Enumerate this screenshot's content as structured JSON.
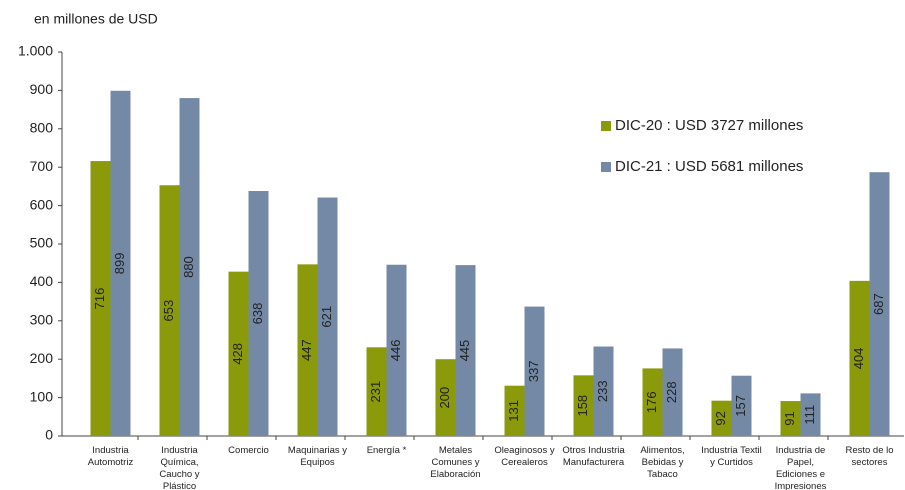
{
  "chart_data": {
    "type": "bar",
    "y_axis_label": "en millones de USD",
    "categories": [
      "Industria\nAutomotriz",
      "Industria\nQuímica,\nCaucho y\nPlástico",
      "Comercio",
      "Maquinarias y\nEquipos",
      "Energía *",
      "Metales\nComunes y\nElaboración",
      "Oleaginosos y\nCerealeros",
      "Otros Industria\nManufacturera",
      "Alimentos,\nBebidas y\nTabaco",
      "Industria Textil\ny Curtidos",
      "Industria de\nPapel,\nEdiciones e\nImpresiones",
      "Resto de lo\nsectores"
    ],
    "series": [
      {
        "name": "DIC-20 : USD 3727 millones",
        "color": "#8a9a0b",
        "values": [
          716,
          653,
          428,
          447,
          231,
          200,
          131,
          158,
          176,
          92,
          91,
          404
        ]
      },
      {
        "name": "DIC-21 : USD 5681 millones",
        "color": "#7489a6",
        "values": [
          899,
          880,
          638,
          621,
          446,
          445,
          337,
          233,
          228,
          157,
          111,
          687
        ]
      }
    ],
    "ylim": [
      0,
      1000
    ],
    "yticks": [
      0,
      100,
      200,
      300,
      400,
      500,
      600,
      700,
      800,
      900,
      {
        "value": 1000,
        "label": "1.000"
      }
    ],
    "grid": false
  }
}
